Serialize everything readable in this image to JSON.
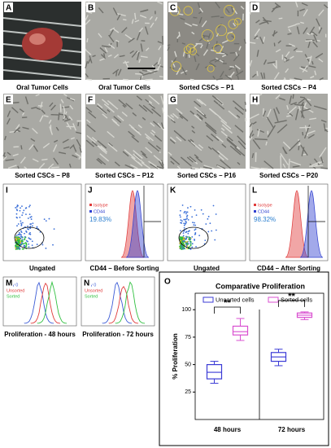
{
  "panels": [
    {
      "letter": "A",
      "caption": "Oral Tumor Cells"
    },
    {
      "letter": "B",
      "caption": "Oral Tumor Cells"
    },
    {
      "letter": "C",
      "caption": "Sorted CSCs – P1"
    },
    {
      "letter": "D",
      "caption": "Sorted CSCs – P4"
    },
    {
      "letter": "E",
      "caption": "Sorted CSCs – P8"
    },
    {
      "letter": "F",
      "caption": "Sorted CSCs – P12"
    },
    {
      "letter": "G",
      "caption": "Sorted CSCs – P16"
    },
    {
      "letter": "H",
      "caption": "Sorted CSCs – P20"
    },
    {
      "letter": "I",
      "caption": "Ungated"
    },
    {
      "letter": "J",
      "caption": "CD44 – Before Sorting",
      "labels": [
        "Isotype",
        "CD44",
        "19.83%"
      ]
    },
    {
      "letter": "K",
      "caption": "Ungated"
    },
    {
      "letter": "L",
      "caption": "CD44 – After Sorting",
      "labels": [
        "Isotype",
        "CD44",
        "98.32%"
      ]
    },
    {
      "letter": "M",
      "caption": "Proliferation - 48 hours",
      "labels": [
        "Day 0",
        "Unsorted",
        "Sorted"
      ]
    },
    {
      "letter": "N",
      "caption": "Proliferation - 72 hours",
      "labels": [
        "Day 0",
        "Unsorted",
        "Sorted"
      ]
    }
  ],
  "chart_data": {
    "type": "box",
    "letter": "O",
    "title": "Comparative Proliferation",
    "ylabel": "% Proliferation",
    "categories": [
      "48 hours",
      "72 hours"
    ],
    "series": [
      {
        "name": "Unsorted cells",
        "color": "#3b3bd6",
        "min": [
          33,
          49
        ],
        "q1": [
          37,
          53
        ],
        "median": [
          43,
          57
        ],
        "q3": [
          50,
          61
        ],
        "max": [
          53,
          64
        ]
      },
      {
        "name": "Sorted cells",
        "color": "#d94fd0",
        "min": [
          72,
          91
        ],
        "q1": [
          77,
          93
        ],
        "median": [
          80,
          95
        ],
        "q3": [
          85,
          97
        ],
        "max": [
          92,
          98
        ]
      }
    ],
    "annotations": [
      "**",
      "**"
    ],
    "ylim": [
      0,
      115
    ],
    "yticks": [
      25,
      50,
      75,
      100
    ]
  }
}
